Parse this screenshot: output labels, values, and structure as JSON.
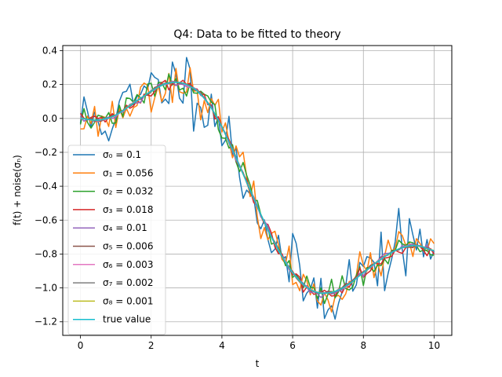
{
  "chart_data": {
    "type": "line",
    "title": "Q4: Data to be fitted to theory",
    "xlabel": "t",
    "ylabel": "f(t) + noise(σₙ)",
    "xlim": [
      -0.5,
      10.5
    ],
    "ylim": [
      -1.28,
      0.43
    ],
    "x_ticks": [
      0,
      2,
      4,
      6,
      8,
      10
    ],
    "x_tick_labels": [
      "0",
      "2",
      "4",
      "6",
      "8",
      "10"
    ],
    "y_ticks": [
      0.4,
      0.2,
      0.0,
      -0.2,
      -0.4,
      -0.6,
      -0.8,
      -1.0,
      -1.2
    ],
    "y_tick_labels": [
      "0.4",
      "0.2",
      "0.0",
      "−0.2",
      "−0.4",
      "−0.6",
      "−0.8",
      "−1.0",
      "−1.2"
    ],
    "grid": true,
    "legend_position": "lower-left",
    "x_range": [
      0,
      10
    ],
    "n_points": 101,
    "series": [
      {
        "name": "σ₀ = 0.1",
        "color": "#1f77b4",
        "sigma": 0.1,
        "seed": 11
      },
      {
        "name": "σ₁ = 0.056",
        "color": "#ff7f0e",
        "sigma": 0.056,
        "seed": 23
      },
      {
        "name": "σ₂ = 0.032",
        "color": "#2ca02c",
        "sigma": 0.032,
        "seed": 37
      },
      {
        "name": "σ₃ = 0.018",
        "color": "#d62728",
        "sigma": 0.018,
        "seed": 41
      },
      {
        "name": "σ₄ = 0.01",
        "color": "#9467bd",
        "sigma": 0.01,
        "seed": 53
      },
      {
        "name": "σ₅ = 0.006",
        "color": "#8c564b",
        "sigma": 0.006,
        "seed": 67
      },
      {
        "name": "σ₆ = 0.003",
        "color": "#e377c2",
        "sigma": 0.003,
        "seed": 71
      },
      {
        "name": "σ₇ = 0.002",
        "color": "#7f7f7f",
        "sigma": 0.002,
        "seed": 83
      },
      {
        "name": "σ₈ = 0.001",
        "color": "#bcbd22",
        "sigma": 0.001,
        "seed": 97
      },
      {
        "name": "true value",
        "color": "#17becf",
        "sigma": 0,
        "seed": 0
      }
    ],
    "true_curve": {
      "x": [
        0,
        0.5,
        1,
        1.5,
        2,
        2.5,
        3,
        3.5,
        4,
        4.5,
        5,
        5.5,
        6,
        6.5,
        7,
        7.5,
        8,
        8.5,
        9,
        9.5,
        10
      ],
      "y": [
        0.0,
        -0.01,
        0.02,
        0.09,
        0.16,
        0.21,
        0.2,
        0.12,
        -0.05,
        -0.28,
        -0.52,
        -0.74,
        -0.91,
        -1.01,
        -1.03,
        -0.99,
        -0.91,
        -0.83,
        -0.77,
        -0.75,
        -0.78
      ]
    }
  }
}
